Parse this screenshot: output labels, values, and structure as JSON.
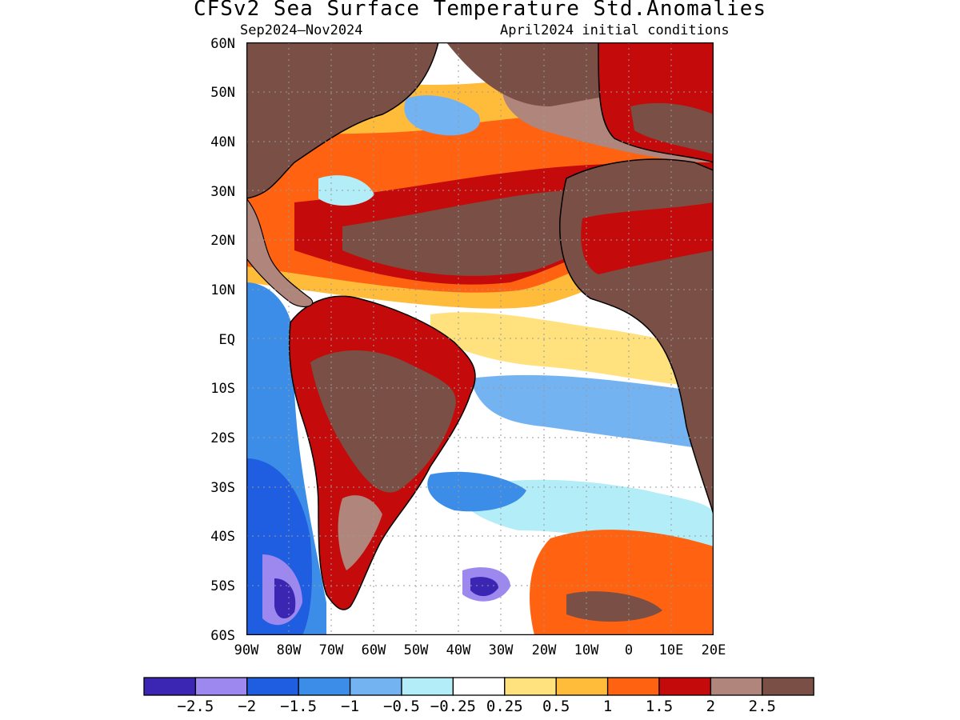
{
  "title": "CFSv2 Sea Surface Temperature Std.Anomalies",
  "subtitle_left": "Sep2024–Nov2024",
  "subtitle_right": "April2024 initial conditions",
  "lat_labels": [
    "60N",
    "50N",
    "40N",
    "30N",
    "20N",
    "10N",
    "EQ",
    "10S",
    "20S",
    "30S",
    "40S",
    "50S",
    "60S"
  ],
  "lon_labels": [
    "90W",
    "80W",
    "70W",
    "60W",
    "50W",
    "40W",
    "30W",
    "20W",
    "10W",
    "0",
    "10E",
    "20E"
  ],
  "colorbar": {
    "colors": [
      "#3b26b3",
      "#9d88f0",
      "#1f5ee0",
      "#3c8de8",
      "#74b3f2",
      "#b3edf7",
      "#ffffff",
      "#ffe17e",
      "#ffbb3a",
      "#ff6210",
      "#c40a0a",
      "#b0857b",
      "#7a4f45"
    ],
    "labels": [
      "−2.5",
      "−2",
      "−1.5",
      "−1",
      "−0.5",
      "−0.25",
      "0.25",
      "0.5",
      "1",
      "1.5",
      "2",
      "2.5"
    ]
  },
  "map": {
    "region": "Atlantic Ocean, 90W–20E, 60S–60N",
    "coastline_color": "#000000",
    "gridline_color": "#9a9a9a"
  }
}
